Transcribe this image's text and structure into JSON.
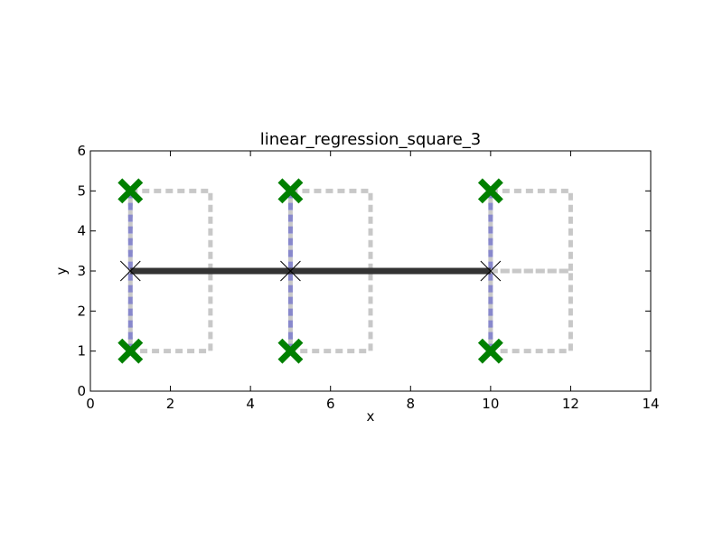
{
  "chart_data": {
    "type": "scatter",
    "title": "linear_regression_square_3",
    "xlabel": "x",
    "ylabel": "y",
    "xlim": [
      0,
      14
    ],
    "ylim": [
      0,
      6
    ],
    "xticks": [
      "0",
      "2",
      "4",
      "6",
      "8",
      "10",
      "12",
      "14"
    ],
    "yticks": [
      "0",
      "1",
      "2",
      "3",
      "4",
      "5",
      "6"
    ],
    "grid": false,
    "points": [
      {
        "x": 1,
        "y": 1
      },
      {
        "x": 1,
        "y": 5
      },
      {
        "x": 5,
        "y": 1
      },
      {
        "x": 5,
        "y": 5
      },
      {
        "x": 10,
        "y": 1
      },
      {
        "x": 10,
        "y": 5
      }
    ],
    "fitted_points": [
      {
        "x": 1,
        "y": 3
      },
      {
        "x": 5,
        "y": 3
      },
      {
        "x": 10,
        "y": 3
      }
    ],
    "regression_line": {
      "x": [
        1,
        10
      ],
      "y": [
        3,
        3
      ]
    },
    "residuals": [
      {
        "x": 1,
        "y0": 1,
        "y1": 5
      },
      {
        "x": 5,
        "y0": 1,
        "y1": 5
      },
      {
        "x": 10,
        "y0": 1,
        "y1": 5
      }
    ],
    "squares": [
      {
        "x0": 1,
        "x1": 3,
        "y0": 1,
        "y1": 3
      },
      {
        "x0": 1,
        "x1": 3,
        "y0": 3,
        "y1": 5
      },
      {
        "x0": 5,
        "x1": 7,
        "y0": 1,
        "y1": 3
      },
      {
        "x0": 5,
        "x1": 7,
        "y0": 3,
        "y1": 5
      },
      {
        "x0": 10,
        "x1": 12,
        "y0": 1,
        "y1": 3
      },
      {
        "x0": 10,
        "x1": 12,
        "y0": 3,
        "y1": 5
      }
    ],
    "colors": {
      "points": "#008000",
      "fitted_marker": "#000000",
      "regression_line": "#333333",
      "residuals": "#8888cc",
      "squares": "#c8c8c8"
    }
  }
}
